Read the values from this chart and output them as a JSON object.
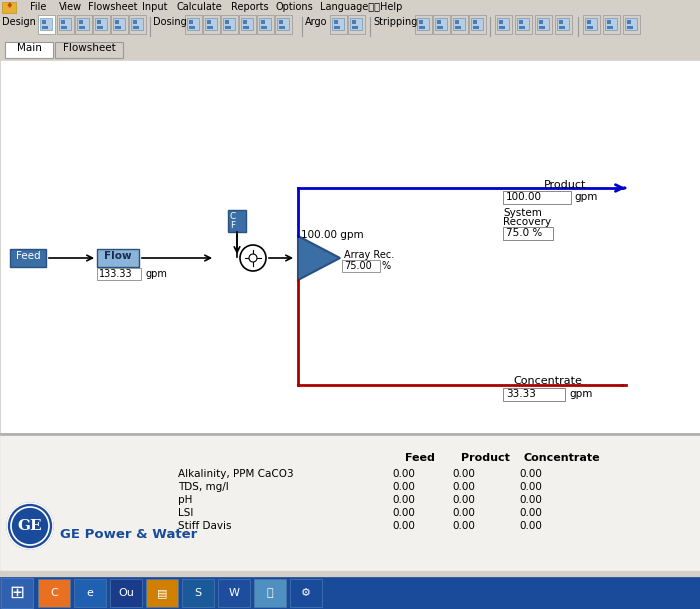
{
  "bg_gray": "#d4d0c8",
  "bg_white": "#ffffff",
  "bg_panel": "#f0f0ef",
  "box_blue_dark": "#3a6ea5",
  "box_blue_mid": "#6a9fc8",
  "box_blue_light": "#8ab4d8",
  "line_blue": "#0000cc",
  "line_red": "#aa0000",
  "line_black": "#000000",
  "taskbar_blue": "#1a4a9a",
  "menu_items": [
    "File",
    "View",
    "Flowsheet",
    "Input",
    "Calculate",
    "Reports",
    "Options",
    "Language语言",
    "Help"
  ],
  "tab_main": "Main",
  "tab_flowsheet": "Flowsheet",
  "feed_label": "Feed",
  "flow_label": "Flow",
  "cf_label": "CF",
  "feed_flow_val": "133.33",
  "feed_flow_unit": "gpm",
  "product_label": "Product",
  "product_flow_val": "100.00",
  "product_flow_unit": "gpm",
  "array_rec_label": "Array Rec.",
  "array_rec_val": "75.00",
  "array_rec_unit": "%",
  "flow_above_tri": "100.00 gpm",
  "sys_rec_label1": "System",
  "sys_rec_label2": "Recovery",
  "sys_rec_val": "75.0 %",
  "concentrate_label": "Concentrate",
  "concentrate_flow_val": "33.33",
  "concentrate_flow_unit": "gpm",
  "tbl_col_feed": "Feed",
  "tbl_col_product": "Product",
  "tbl_col_concentrate": "Concentrate",
  "tbl_rows": [
    [
      "Alkalinity, PPM CaCO3",
      "0.00",
      "0.00",
      "0.00"
    ],
    [
      "TDS, mg/l",
      "0.00",
      "0.00",
      "0.00"
    ],
    [
      "pH",
      "0.00",
      "0.00",
      "0.00"
    ],
    [
      "LSI",
      "0.00",
      "0.00",
      "0.00"
    ],
    [
      "Stiff Davis",
      "0.00",
      "0.00",
      "0.00"
    ]
  ],
  "ge_text": "GE Power & Water"
}
